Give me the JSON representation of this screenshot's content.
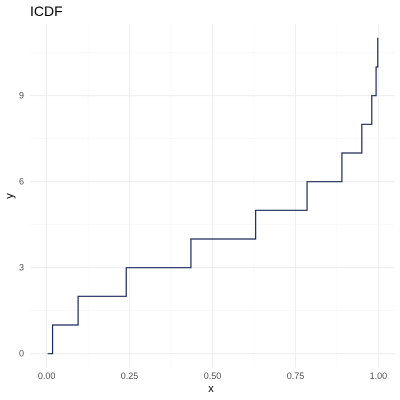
{
  "chart_data": {
    "type": "line",
    "title": "ICDF",
    "xlabel": "x",
    "ylabel": "y",
    "xlim": [
      -0.05,
      1.05
    ],
    "ylim": [
      -0.5,
      11.5
    ],
    "x_ticks": [
      0.0,
      0.25,
      0.5,
      0.75,
      1.0
    ],
    "x_tick_labels": [
      "0.00",
      "0.25",
      "0.50",
      "0.75",
      "1.00"
    ],
    "y_ticks": [
      0,
      3,
      6,
      9
    ],
    "y_tick_labels": [
      "0",
      "3",
      "6",
      "9"
    ],
    "grid": true,
    "line_color": "#1a2a5a",
    "series": [
      {
        "step": "post",
        "x": [
          0.003,
          0.018,
          0.095,
          0.24,
          0.435,
          0.63,
          0.785,
          0.89,
          0.95,
          0.98,
          0.993,
          0.998
        ],
        "y": [
          0,
          1,
          2,
          3,
          4,
          5,
          6,
          7,
          8,
          9,
          10,
          11
        ],
        "x_end": 1.0
      }
    ]
  }
}
